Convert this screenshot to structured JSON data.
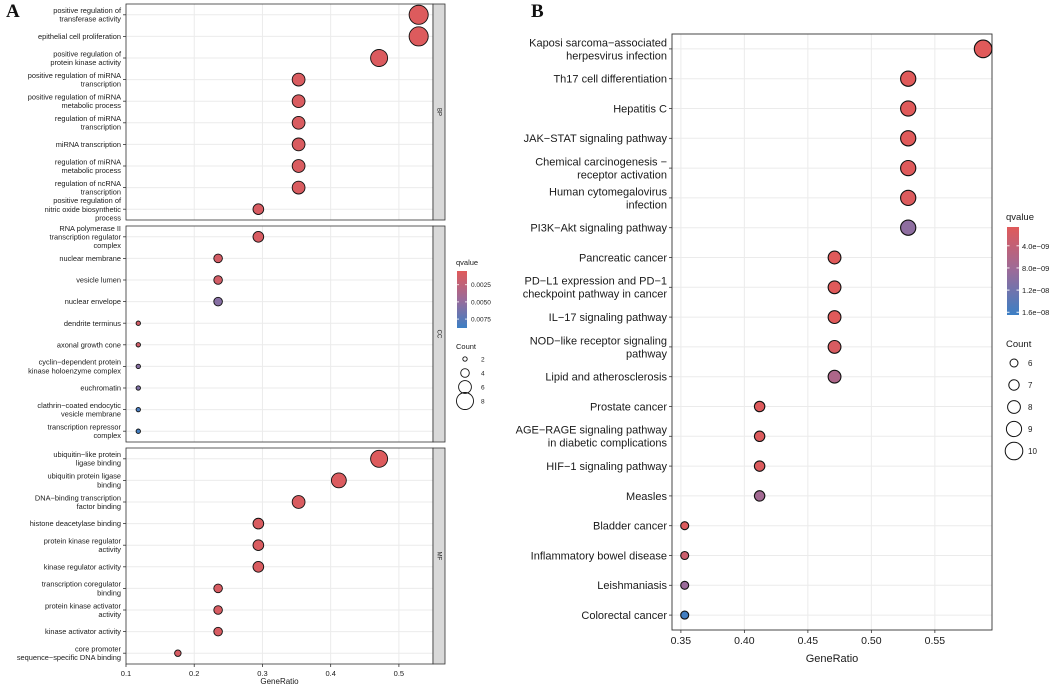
{
  "chart_data": [
    {
      "panel": "A",
      "type": "scatter",
      "xlabel": "GeneRatio",
      "ylabel": "",
      "xlim": [
        0.1,
        0.55
      ],
      "xticks": [
        0.1,
        0.2,
        0.3,
        0.4,
        0.5
      ],
      "xtick_labels": [
        "0.1",
        "0.2",
        "0.3",
        "0.4",
        "0.5"
      ],
      "grid": true,
      "facets": [
        {
          "name": "BP",
          "terms": [
            {
              "label": "positive regulation of transferase activity",
              "lines": [
                "positive regulation of",
                "transferase activity"
              ],
              "x": 0.529,
              "count": 9,
              "qvalue": 0.0007
            },
            {
              "label": "epithelial cell proliferation",
              "lines": [
                "epithelial cell proliferation"
              ],
              "x": 0.529,
              "count": 9,
              "qvalue": 0.0007
            },
            {
              "label": "positive regulation of protein kinase activity",
              "lines": [
                "positive regulation of",
                "protein kinase activity"
              ],
              "x": 0.471,
              "count": 8,
              "qvalue": 0.0008
            },
            {
              "label": "positive regulation of miRNA transcription",
              "lines": [
                "positive regulation of miRNA",
                "transcription"
              ],
              "x": 0.353,
              "count": 6,
              "qvalue": 0.0009
            },
            {
              "label": "positive regulation of miRNA metabolic process",
              "lines": [
                "positive regulation of miRNA",
                "metabolic process"
              ],
              "x": 0.353,
              "count": 6,
              "qvalue": 0.0009
            },
            {
              "label": "regulation of miRNA transcription",
              "lines": [
                "regulation of miRNA",
                "transcription"
              ],
              "x": 0.353,
              "count": 6,
              "qvalue": 0.0009
            },
            {
              "label": "miRNA transcription",
              "lines": [
                "miRNA transcription"
              ],
              "x": 0.353,
              "count": 6,
              "qvalue": 0.0009
            },
            {
              "label": "regulation of miRNA metabolic process",
              "lines": [
                "regulation of miRNA",
                "metabolic process"
              ],
              "x": 0.353,
              "count": 6,
              "qvalue": 0.0009
            },
            {
              "label": "regulation of ncRNA transcription",
              "lines": [
                "regulation of ncRNA",
                "transcription"
              ],
              "x": 0.353,
              "count": 6,
              "qvalue": 0.0009
            },
            {
              "label": "positive regulation of nitric oxide biosynthetic process",
              "lines": [
                "positive regulation of",
                "nitric oxide biosynthetic",
                "process"
              ],
              "x": 0.294,
              "count": 5,
              "qvalue": 0.001
            }
          ]
        },
        {
          "name": "CC",
          "terms": [
            {
              "label": "RNA polymerase II transcription regulator complex",
              "lines": [
                "RNA polymerase II",
                "transcription regulator",
                "complex"
              ],
              "x": 0.294,
              "count": 5,
              "qvalue": 0.001
            },
            {
              "label": "nuclear membrane",
              "lines": [
                "nuclear membrane"
              ],
              "x": 0.235,
              "count": 4,
              "qvalue": 0.0012
            },
            {
              "label": "vesicle lumen",
              "lines": [
                "vesicle lumen"
              ],
              "x": 0.235,
              "count": 4,
              "qvalue": 0.0013
            },
            {
              "label": "nuclear envelope",
              "lines": [
                "nuclear envelope"
              ],
              "x": 0.235,
              "count": 4,
              "qvalue": 0.0055
            },
            {
              "label": "dendrite terminus",
              "lines": [
                "dendrite terminus"
              ],
              "x": 0.118,
              "count": 2,
              "qvalue": 0.0013
            },
            {
              "label": "axonal growth cone",
              "lines": [
                "axonal growth cone"
              ],
              "x": 0.118,
              "count": 2,
              "qvalue": 0.0015
            },
            {
              "label": "cyclin-dependent protein kinase holoenzyme complex",
              "lines": [
                "cyclin−dependent protein",
                "kinase holoenzyme complex"
              ],
              "x": 0.118,
              "count": 2,
              "qvalue": 0.0055
            },
            {
              "label": "euchromatin",
              "lines": [
                "euchromatin"
              ],
              "x": 0.118,
              "count": 2,
              "qvalue": 0.0058
            },
            {
              "label": "clathrin-coated endocytic vesicle membrane",
              "lines": [
                "clathrin−coated endocytic",
                "vesicle membrane"
              ],
              "x": 0.118,
              "count": 2,
              "qvalue": 0.0082
            },
            {
              "label": "transcription repressor complex",
              "lines": [
                "transcription repressor",
                "complex"
              ],
              "x": 0.118,
              "count": 2,
              "qvalue": 0.0085
            }
          ]
        },
        {
          "name": "MF",
          "terms": [
            {
              "label": "ubiquitin-like protein ligase binding",
              "lines": [
                "ubiquitin−like protein",
                "ligase binding"
              ],
              "x": 0.471,
              "count": 8,
              "qvalue": 0.0007
            },
            {
              "label": "ubiquitin protein ligase binding",
              "lines": [
                "ubiquitin protein ligase",
                "binding"
              ],
              "x": 0.412,
              "count": 7,
              "qvalue": 0.0008
            },
            {
              "label": "DNA-binding transcription factor binding",
              "lines": [
                "DNA−binding transcription",
                "factor binding"
              ],
              "x": 0.353,
              "count": 6,
              "qvalue": 0.0009
            },
            {
              "label": "histone deacetylase binding",
              "lines": [
                "histone deacetylase binding"
              ],
              "x": 0.294,
              "count": 5,
              "qvalue": 0.0009
            },
            {
              "label": "protein kinase regulator activity",
              "lines": [
                "protein kinase regulator",
                "activity"
              ],
              "x": 0.294,
              "count": 5,
              "qvalue": 0.0009
            },
            {
              "label": "kinase regulator activity",
              "lines": [
                "kinase regulator activity"
              ],
              "x": 0.294,
              "count": 5,
              "qvalue": 0.0009
            },
            {
              "label": "transcription coregulator binding",
              "lines": [
                "transcription coregulator",
                "binding"
              ],
              "x": 0.235,
              "count": 4,
              "qvalue": 0.001
            },
            {
              "label": "protein kinase activator activity",
              "lines": [
                "protein kinase activator",
                "activity"
              ],
              "x": 0.235,
              "count": 4,
              "qvalue": 0.001
            },
            {
              "label": "kinase activator activity",
              "lines": [
                "kinase activator activity"
              ],
              "x": 0.235,
              "count": 4,
              "qvalue": 0.001
            },
            {
              "label": "core promoter sequence-specific DNA binding",
              "lines": [
                "core promoter",
                "sequence−specific DNA binding"
              ],
              "x": 0.176,
              "count": 3,
              "qvalue": 0.0011
            }
          ]
        }
      ],
      "legend": {
        "color_title": "qvalue",
        "color_range": [
          0.0005,
          0.0088
        ],
        "color_ticks": [
          0.0025,
          0.005,
          0.0075
        ],
        "color_tick_labels": [
          "0.0025",
          "0.0050",
          "0.0075"
        ],
        "size_title": "Count",
        "size_values": [
          2,
          4,
          6,
          8
        ],
        "size_labels": [
          "2",
          "4",
          "6",
          "8"
        ],
        "position": "right"
      }
    },
    {
      "panel": "B",
      "type": "scatter",
      "xlabel": "GeneRatio",
      "ylabel": "",
      "xlim": [
        0.343,
        0.595
      ],
      "xticks": [
        0.35,
        0.4,
        0.45,
        0.5,
        0.55
      ],
      "xtick_labels": [
        "0.35",
        "0.40",
        "0.45",
        "0.50",
        "0.55"
      ],
      "grid": true,
      "terms": [
        {
          "label": "Kaposi sarcoma-associated herpesvirus infection",
          "lines": [
            "Kaposi sarcoma−associated",
            "herpesvirus infection"
          ],
          "x": 0.588,
          "count": 10,
          "qvalue": 6e-10
        },
        {
          "label": "Th17 cell differentiation",
          "lines": [
            "Th17 cell differentiation"
          ],
          "x": 0.529,
          "count": 9,
          "qvalue": 6e-10
        },
        {
          "label": "Hepatitis C",
          "lines": [
            "Hepatitis C"
          ],
          "x": 0.529,
          "count": 9,
          "qvalue": 6e-10
        },
        {
          "label": "JAK-STAT signaling pathway",
          "lines": [
            "JAK−STAT signaling pathway"
          ],
          "x": 0.529,
          "count": 9,
          "qvalue": 6e-10
        },
        {
          "label": "Chemical carcinogenesis - receptor activation",
          "lines": [
            "Chemical carcinogenesis −",
            "receptor activation"
          ],
          "x": 0.529,
          "count": 9,
          "qvalue": 7e-10
        },
        {
          "label": "Human cytomegalovirus infection",
          "lines": [
            "Human cytomegalovirus",
            "infection"
          ],
          "x": 0.529,
          "count": 9,
          "qvalue": 1e-09
        },
        {
          "label": "PI3K-Akt signaling pathway",
          "lines": [
            "PI3K−Akt signaling pathway"
          ],
          "x": 0.529,
          "count": 9,
          "qvalue": 9.6e-09
        },
        {
          "label": "Pancreatic cancer",
          "lines": [
            "Pancreatic cancer"
          ],
          "x": 0.471,
          "count": 8,
          "qvalue": 6e-10
        },
        {
          "label": "PD-L1 expression and PD-1 checkpoint pathway in cancer",
          "lines": [
            "PD−L1 expression and PD−1",
            "checkpoint pathway in cancer"
          ],
          "x": 0.471,
          "count": 8,
          "qvalue": 6e-10
        },
        {
          "label": "IL-17 signaling pathway",
          "lines": [
            "IL−17 signaling pathway"
          ],
          "x": 0.471,
          "count": 8,
          "qvalue": 6e-10
        },
        {
          "label": "NOD-like receptor signaling pathway",
          "lines": [
            "NOD−like receptor signaling",
            "pathway"
          ],
          "x": 0.471,
          "count": 8,
          "qvalue": 1.5e-09
        },
        {
          "label": "Lipid and atherosclerosis",
          "lines": [
            "Lipid and atherosclerosis"
          ],
          "x": 0.471,
          "count": 8,
          "qvalue": 6.4e-09
        },
        {
          "label": "Prostate cancer",
          "lines": [
            "Prostate cancer"
          ],
          "x": 0.412,
          "count": 7,
          "qvalue": 8e-10
        },
        {
          "label": "AGE-RAGE signaling pathway in diabetic complications",
          "lines": [
            "AGE−RAGE signaling pathway",
            "in diabetic complications"
          ],
          "x": 0.412,
          "count": 7,
          "qvalue": 9e-10
        },
        {
          "label": "HIF-1 signaling pathway",
          "lines": [
            "HIF−1 signaling pathway"
          ],
          "x": 0.412,
          "count": 7,
          "qvalue": 1e-09
        },
        {
          "label": "Measles",
          "lines": [
            "Measles"
          ],
          "x": 0.412,
          "count": 7,
          "qvalue": 7.6e-09
        },
        {
          "label": "Bladder cancer",
          "lines": [
            "Bladder cancer"
          ],
          "x": 0.353,
          "count": 6,
          "qvalue": 1e-09
        },
        {
          "label": "Inflammatory bowel disease",
          "lines": [
            "Inflammatory bowel disease"
          ],
          "x": 0.353,
          "count": 6,
          "qvalue": 3e-09
        },
        {
          "label": "Leishmaniasis",
          "lines": [
            "Leishmaniasis"
          ],
          "x": 0.353,
          "count": 6,
          "qvalue": 8.5e-09
        },
        {
          "label": "Colorectal cancer",
          "lines": [
            "Colorectal cancer"
          ],
          "x": 0.353,
          "count": 6,
          "qvalue": 1.6e-08
        }
      ],
      "legend": {
        "color_title": "qvalue",
        "color_range": [
          6e-10,
          1.65e-08
        ],
        "color_ticks": [
          4e-09,
          8e-09,
          1.2e-08,
          1.6e-08
        ],
        "color_tick_labels": [
          "4.0e−09",
          "8.0e−09",
          "1.2e−08",
          "1.6e−08"
        ],
        "size_title": "Count",
        "size_values": [
          6,
          7,
          8,
          9,
          10
        ],
        "size_labels": [
          "6",
          "7",
          "8",
          "9",
          "10"
        ],
        "position": "right"
      }
    }
  ],
  "panel_labels": [
    "A",
    "B"
  ],
  "colors": {
    "low_q": "#e05a5a",
    "mid_q": "#9a6b9a",
    "high_q": "#3c7fc4",
    "grid": "#ebebeb",
    "strip": "#d9d9d9",
    "axis": "#333333"
  }
}
